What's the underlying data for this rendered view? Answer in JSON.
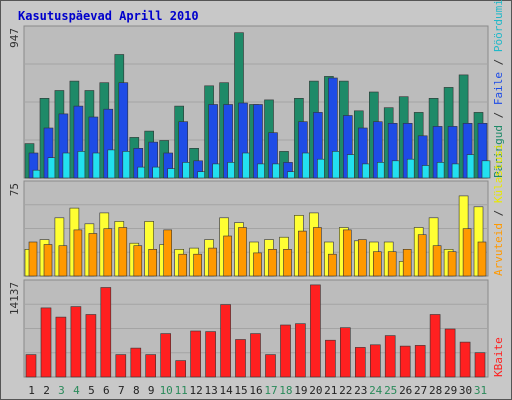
{
  "title": "Kasutuspäevad Aprill 2010",
  "chart_data": [
    {
      "type": "bar",
      "title": "Kasutuspäevad Aprill 2010",
      "categories": [
        "1",
        "2",
        "3",
        "4",
        "5",
        "6",
        "7",
        "8",
        "9",
        "10",
        "11",
        "12",
        "13",
        "14",
        "15",
        "16",
        "17",
        "18",
        "19",
        "20",
        "21",
        "22",
        "23",
        "24",
        "25",
        "26",
        "27",
        "28",
        "29",
        "30",
        "31"
      ],
      "weekend_days": [
        "3",
        "4",
        "10",
        "11",
        "17",
        "18",
        "24",
        "25",
        "31"
      ],
      "ymax_label": "947",
      "ylim": [
        0,
        947
      ],
      "right_labels": [
        "Päringud",
        "Faile",
        "Pöördumisi"
      ],
      "series": [
        {
          "name": "Päringud",
          "color": "#1e8a68",
          "values": [
            220,
            510,
            560,
            620,
            560,
            610,
            790,
            260,
            300,
            240,
            460,
            190,
            590,
            610,
            930,
            470,
            500,
            170,
            510,
            620,
            650,
            620,
            430,
            550,
            450,
            520,
            420,
            510,
            580,
            660,
            420
          ]
        },
        {
          "name": "Faile",
          "color": "#1e4ce6",
          "values": [
            160,
            320,
            410,
            460,
            390,
            440,
            610,
            190,
            230,
            160,
            360,
            110,
            470,
            470,
            480,
            470,
            290,
            100,
            360,
            420,
            640,
            400,
            320,
            360,
            350,
            350,
            270,
            330,
            330,
            350,
            350
          ]
        },
        {
          "name": "Pöördumisi",
          "color": "#22e0f0",
          "values": [
            50,
            130,
            160,
            170,
            160,
            180,
            170,
            70,
            70,
            60,
            100,
            40,
            90,
            100,
            160,
            90,
            90,
            40,
            160,
            120,
            170,
            150,
            90,
            100,
            110,
            120,
            80,
            100,
            90,
            150,
            110
          ]
        }
      ]
    },
    {
      "type": "bar",
      "ymax_label": "75",
      "ylim": [
        0,
        75
      ],
      "right_labels": [
        "Arvuteid",
        "Külastusi"
      ],
      "series": [
        {
          "name": "Külastusi",
          "color": "#ffff33",
          "values": [
            22,
            30,
            48,
            56,
            43,
            52,
            45,
            27,
            45,
            26,
            22,
            23,
            30,
            48,
            44,
            28,
            30,
            32,
            50,
            52,
            28,
            40,
            29,
            28,
            28,
            12,
            40,
            48,
            22,
            66,
            57
          ]
        },
        {
          "name": "Arvuteid",
          "color": "#ff9900",
          "values": [
            28,
            26,
            25,
            38,
            35,
            39,
            40,
            25,
            22,
            38,
            18,
            18,
            23,
            33,
            40,
            19,
            22,
            22,
            37,
            40,
            18,
            38,
            30,
            20,
            20,
            22,
            34,
            25,
            20,
            39,
            28
          ]
        }
      ]
    },
    {
      "type": "bar",
      "ymax_label": "14137",
      "ylim": [
        0,
        14137
      ],
      "right_labels": [
        "KBaite"
      ],
      "series": [
        {
          "name": "KBaite",
          "color": "#ff2020",
          "values": [
            3400,
            10500,
            9100,
            10700,
            9500,
            13600,
            3400,
            4400,
            3400,
            6600,
            2500,
            7000,
            6900,
            11000,
            5700,
            6600,
            3400,
            7900,
            8100,
            14000,
            5600,
            7500,
            4500,
            4900,
            6300,
            4700,
            4800,
            9500,
            7300,
            5300,
            3700
          ]
        }
      ]
    }
  ]
}
